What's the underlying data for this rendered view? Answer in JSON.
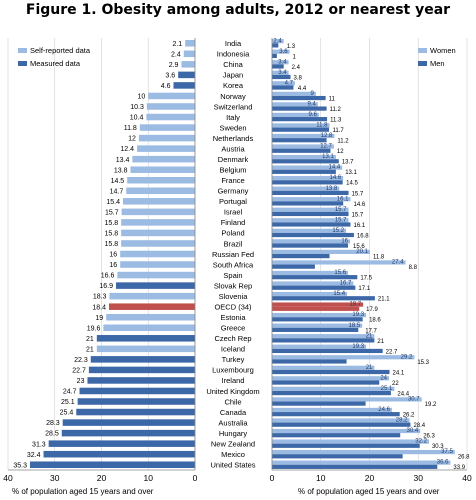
{
  "title": "Figure 1. Obesity among adults, 2012 or nearest year",
  "chart_data": {
    "type": "bar",
    "left_panel": {
      "series": [
        {
          "name": "Self-reported data",
          "color": "#9cbbe3"
        },
        {
          "name": "Measured data",
          "color": "#3d68a7"
        }
      ],
      "xlim": [
        40,
        0
      ],
      "xticks": [
        40,
        30,
        20,
        10,
        0
      ],
      "xlabel": "% of population aged 15 years and over"
    },
    "right_panel": {
      "series": [
        {
          "name": "Women",
          "color": "#9cbbe3"
        },
        {
          "name": "Men",
          "color": "#3d68a7"
        }
      ],
      "xlim": [
        0,
        40
      ],
      "xticks": [
        0,
        10,
        20,
        30,
        40
      ],
      "xlabel": "% of population aged 15 years and over"
    },
    "highlight_color": "#c0504d",
    "countries": [
      {
        "name": "India",
        "total": 2.1,
        "measured": false,
        "women": 2.4,
        "men": 1.3
      },
      {
        "name": "Indonesia",
        "total": 2.4,
        "measured": false,
        "women": 3.6,
        "men": 1
      },
      {
        "name": "China",
        "total": 2.9,
        "measured": false,
        "women": 3.4,
        "men": 2.4
      },
      {
        "name": "Japan",
        "total": 3.6,
        "measured": true,
        "women": 3.4,
        "men": 3.8
      },
      {
        "name": "Korea",
        "total": 4.6,
        "measured": true,
        "women": 4.7,
        "men": 4.4
      },
      {
        "name": "Norway",
        "total": 10,
        "measured": false,
        "women": 9,
        "men": 11
      },
      {
        "name": "Switzerland",
        "total": 10.3,
        "measured": false,
        "women": 9.4,
        "men": 11.2
      },
      {
        "name": "Italy",
        "total": 10.4,
        "measured": false,
        "women": 9.6,
        "men": 11.3
      },
      {
        "name": "Sweden",
        "total": 11.8,
        "measured": false,
        "women": 11.8,
        "men": 11.7
      },
      {
        "name": "Netherlands",
        "total": 12,
        "measured": false,
        "women": 12.8,
        "men": 11.2
      },
      {
        "name": "Austria",
        "total": 12.4,
        "measured": false,
        "women": 12.7,
        "men": 12
      },
      {
        "name": "Denmark",
        "total": 13.4,
        "measured": false,
        "women": 13.1,
        "men": 13.7
      },
      {
        "name": "Belgium",
        "total": 13.8,
        "measured": false,
        "women": 14.4,
        "men": 13.1
      },
      {
        "name": "France",
        "total": 14.5,
        "measured": false,
        "women": 14.6,
        "men": 14.5
      },
      {
        "name": "Germany",
        "total": 14.7,
        "measured": false,
        "women": 13.8,
        "men": 15.7
      },
      {
        "name": "Portugal",
        "total": 15.4,
        "measured": false,
        "women": 16.1,
        "men": 14.6
      },
      {
        "name": "Israel",
        "total": 15.7,
        "measured": false,
        "women": 15.7,
        "men": 15.7
      },
      {
        "name": "Finland",
        "total": 15.8,
        "measured": false,
        "women": 15.7,
        "men": 16.1
      },
      {
        "name": "Poland",
        "total": 15.8,
        "measured": false,
        "women": 15.2,
        "men": 16.8
      },
      {
        "name": "Brazil",
        "total": 15.8,
        "measured": false,
        "women": 16,
        "men": 15.6
      },
      {
        "name": "Russian Fed",
        "total": 16,
        "measured": false,
        "women": 20.1,
        "men": 11.8
      },
      {
        "name": "South Africa",
        "total": 16,
        "measured": false,
        "women": 27.4,
        "men": 8.8
      },
      {
        "name": "Spain",
        "total": 16.6,
        "measured": false,
        "women": 15.6,
        "men": 17.5
      },
      {
        "name": "Slovak Rep",
        "total": 16.9,
        "measured": true,
        "women": 16.7,
        "men": 17.1
      },
      {
        "name": "Slovenia",
        "total": 18.3,
        "measured": false,
        "women": 15.4,
        "men": 21.1
      },
      {
        "name": "OECD (34)",
        "total": 18.4,
        "measured": false,
        "highlight": true,
        "women": 18.7,
        "men": 17.9
      },
      {
        "name": "Estonia",
        "total": 19,
        "measured": false,
        "women": 19.3,
        "men": 18.6
      },
      {
        "name": "Greece",
        "total": 19.6,
        "measured": false,
        "women": 18.5,
        "men": 17.7
      },
      {
        "name": "Czech Rep",
        "total": 21,
        "measured": true,
        "women": 21,
        "men": 21
      },
      {
        "name": "Iceland",
        "total": 21,
        "measured": false,
        "women": 19.3,
        "men": 22.7
      },
      {
        "name": "Turkey",
        "total": 22.3,
        "measured": true,
        "women": 29.2,
        "men": 15.3
      },
      {
        "name": "Luxembourg",
        "total": 22.7,
        "measured": true,
        "women": 21,
        "men": 24.1
      },
      {
        "name": "Ireland",
        "total": 23,
        "measured": true,
        "women": 24,
        "men": 22
      },
      {
        "name": "United Kingdom",
        "total": 24.7,
        "measured": true,
        "women": 25.1,
        "men": 24.4
      },
      {
        "name": "Chile",
        "total": 25.1,
        "measured": true,
        "women": 30.7,
        "men": 19.2
      },
      {
        "name": "Canada",
        "total": 25.4,
        "measured": true,
        "women": 24.6,
        "men": 26.2
      },
      {
        "name": "Australia",
        "total": 28.3,
        "measured": true,
        "women": 28.2,
        "men": 28.4
      },
      {
        "name": "Hungary",
        "total": 28.5,
        "measured": true,
        "women": 30.4,
        "men": 26.3
      },
      {
        "name": "New Zealand",
        "total": 31.3,
        "measured": true,
        "women": 32.2,
        "men": 30.3
      },
      {
        "name": "Mexico",
        "total": 32.4,
        "measured": true,
        "women": 37.5,
        "men": 26.8
      },
      {
        "name": "United States",
        "total": 35.3,
        "measured": true,
        "women": 36.6,
        "men": 33.9
      }
    ]
  }
}
